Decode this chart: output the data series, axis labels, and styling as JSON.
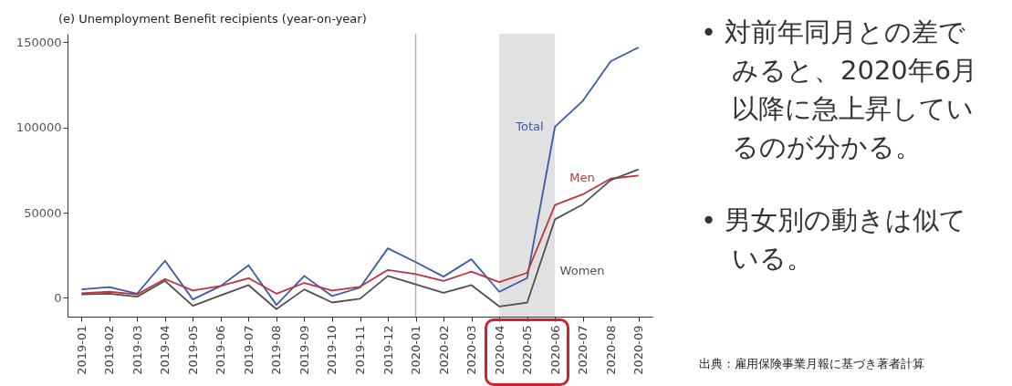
{
  "chart_data": {
    "type": "line",
    "title": "(e) Unemployment Benefit recipients (year-on-year)",
    "categories": [
      "2019-01",
      "2019-02",
      "2019-03",
      "2019-04",
      "2019-05",
      "2019-06",
      "2019-07",
      "2019-08",
      "2019-09",
      "2019-10",
      "2019-11",
      "2019-12",
      "2020-01",
      "2020-02",
      "2020-03",
      "2020-04",
      "2020-05",
      "2020-06",
      "2020-07",
      "2020-08",
      "2020-09"
    ],
    "series": [
      {
        "name": "Total",
        "color": "#3a5ba8",
        "values": [
          5000,
          6300,
          2500,
          21800,
          -900,
          7000,
          19100,
          -4100,
          12900,
          1100,
          6000,
          29100,
          21000,
          12500,
          22700,
          3600,
          11600,
          100400,
          115600,
          138800,
          147000
        ]
      },
      {
        "name": "Men",
        "color": "#c0323c",
        "values": [
          2700,
          3600,
          2100,
          11100,
          4300,
          7000,
          11600,
          2500,
          8800,
          4300,
          6500,
          16400,
          14000,
          9900,
          15400,
          9300,
          14700,
          54500,
          60800,
          70000,
          71800
        ]
      },
      {
        "name": "Women",
        "color": "#505050",
        "values": [
          2100,
          2500,
          700,
          10000,
          -4600,
          1500,
          7500,
          -6600,
          5000,
          -2700,
          -500,
          12900,
          8000,
          3000,
          7500,
          -5000,
          -2800,
          46100,
          54900,
          69100,
          75400
        ]
      }
    ],
    "ylim": [
      -11000,
      155000
    ],
    "yticks": [
      0,
      50000,
      100000,
      150000
    ],
    "grid": false,
    "ref_lines": [
      {
        "axis": "x",
        "value": "2020-01",
        "color": "#b4b4b4"
      }
    ],
    "bands": [
      {
        "axis": "x",
        "from": "2020-04",
        "to": "2020-06",
        "color": "#e1e1e1"
      }
    ],
    "annotations": [
      "• 対前年同月との差でみると、2020年6月以降に急上昇しているのが分かる。",
      "• 男女別の動きは似ている。",
      "出典：雇用保険事業月報に基づき著者計算"
    ]
  }
}
